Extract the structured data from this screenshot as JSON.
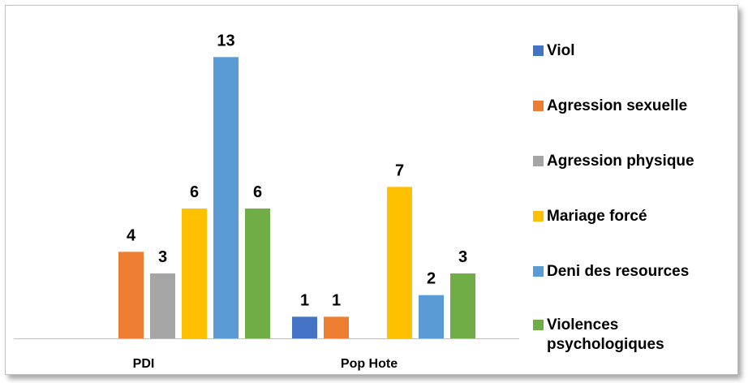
{
  "chart_data": {
    "type": "bar",
    "categories": [
      "PDI",
      "Pop Hote"
    ],
    "series": [
      {
        "name": "Viol",
        "color": "#4472C4",
        "values": [
          null,
          1
        ]
      },
      {
        "name": "Agression sexuelle",
        "color": "#ED7D31",
        "values": [
          4,
          1
        ]
      },
      {
        "name": "Agression physique",
        "color": "#A5A5A5",
        "values": [
          3,
          null
        ]
      },
      {
        "name": "Mariage forcé",
        "color": "#FFC000",
        "values": [
          6,
          7
        ]
      },
      {
        "name": "Deni des resources",
        "color": "#5B9BD5",
        "values": [
          13,
          2
        ]
      },
      {
        "name": "Violences psychologiques",
        "color": "#70AD47",
        "values": [
          6,
          3
        ]
      }
    ],
    "ylim": [
      0,
      13.5
    ],
    "grid": false,
    "legend_position": "right"
  }
}
